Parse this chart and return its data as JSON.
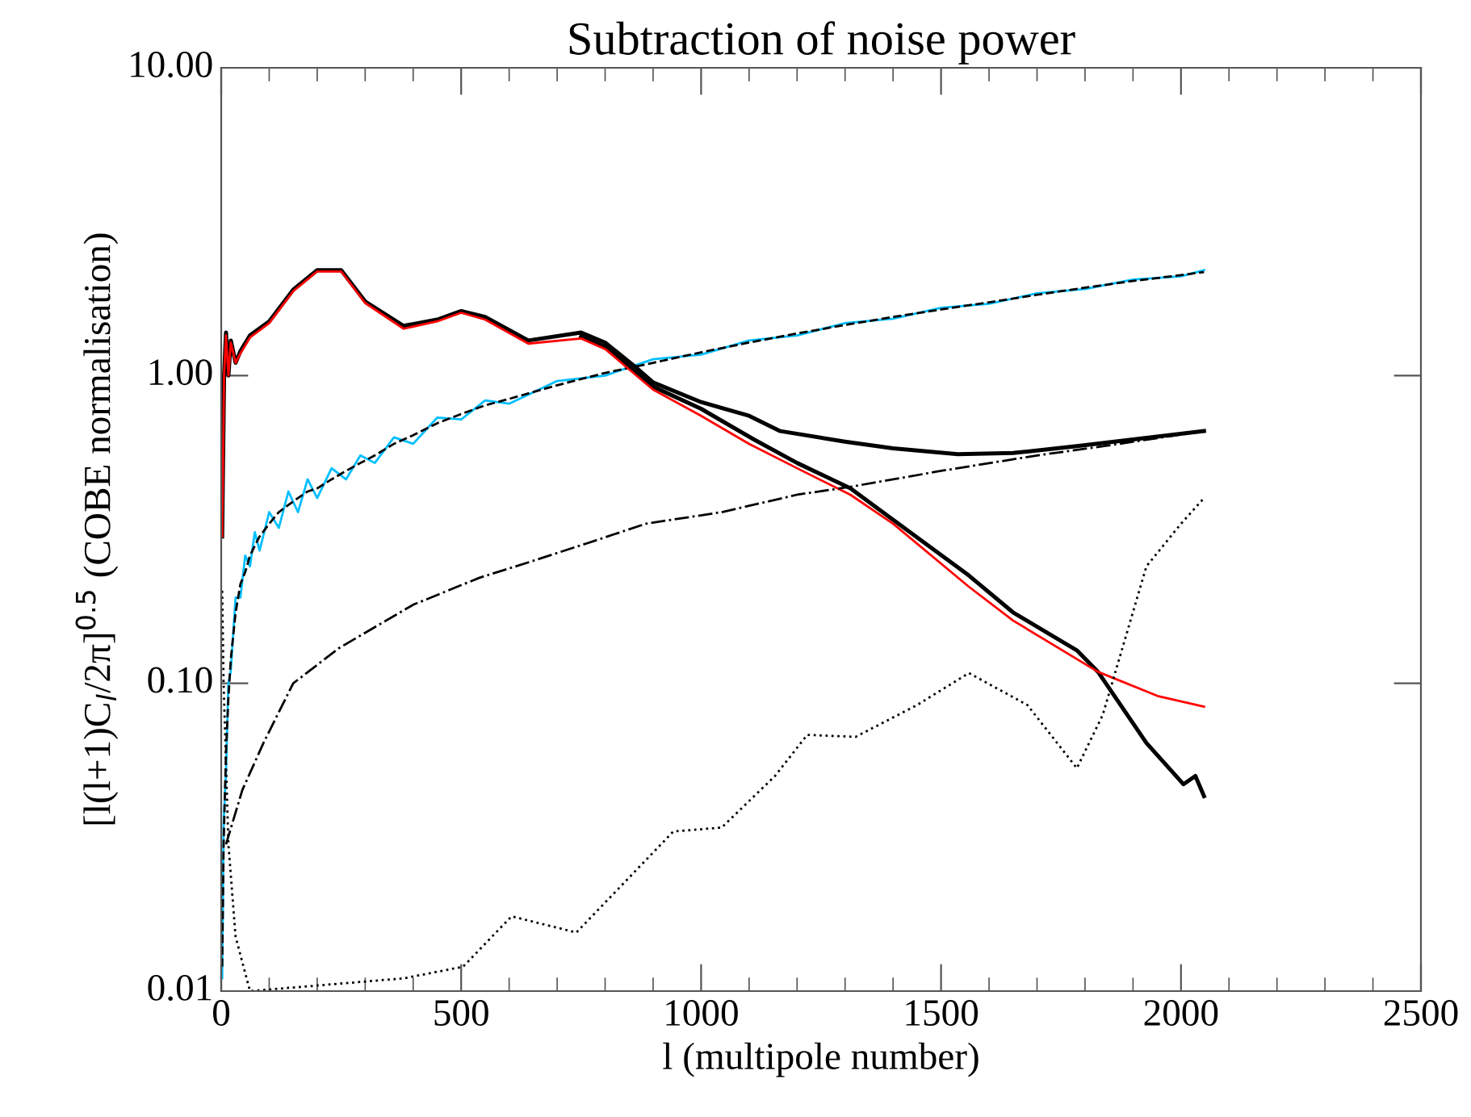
{
  "chart_data": {
    "type": "line",
    "title": "Subtraction of noise power",
    "xlabel": "l (multipole number)",
    "ylabel": "[l(l+1)C$_{l}$/2π]$^{0.5}$ (COBE normalisation)",
    "log": "y",
    "xlim": [
      0,
      2500
    ],
    "xticks": [
      0,
      500,
      1000,
      1500,
      2000,
      2500
    ],
    "ylim": [
      0.01,
      10
    ],
    "yticks": [
      {
        "value": 0.01,
        "label": "0.01"
      },
      {
        "value": 0.1,
        "label": "0.10"
      },
      {
        "value": 1,
        "label": "1.00"
      },
      {
        "value": 10,
        "label": "10.00"
      }
    ],
    "grid": false,
    "legend": false,
    "series": [
      {
        "color": "#00bfff",
        "line_style": "solid",
        "x": [
          2,
          5,
          10,
          15,
          20,
          30,
          40,
          50,
          60,
          70,
          80,
          100,
          120,
          140,
          160,
          180,
          200,
          230,
          260,
          290,
          320,
          360,
          400,
          450,
          500,
          550,
          600,
          700,
          800,
          900,
          1000,
          1100,
          1200,
          1300,
          1400,
          1500,
          1600,
          1700,
          1800,
          1900,
          2000,
          2048
        ],
        "values": [
          0.011,
          0.035,
          0.052,
          0.1,
          0.11,
          0.19,
          0.19,
          0.26,
          0.24,
          0.31,
          0.27,
          0.36,
          0.32,
          0.42,
          0.36,
          0.46,
          0.4,
          0.5,
          0.46,
          0.55,
          0.52,
          0.63,
          0.6,
          0.73,
          0.72,
          0.83,
          0.81,
          0.96,
          1.0,
          1.13,
          1.17,
          1.3,
          1.35,
          1.48,
          1.53,
          1.66,
          1.71,
          1.85,
          1.91,
          2.05,
          2.1,
          2.2
        ]
      },
      {
        "color": "#000000",
        "line_style": "dashed",
        "x": [
          2,
          5,
          10,
          15,
          20,
          30,
          40,
          50,
          60,
          70,
          80,
          100,
          120,
          140,
          160,
          180,
          200,
          230,
          260,
          290,
          320,
          360,
          400,
          450,
          500,
          550,
          600,
          700,
          800,
          900,
          1000,
          1100,
          1200,
          1300,
          1400,
          1500,
          1600,
          1700,
          1800,
          1900,
          2000,
          2048
        ],
        "values": [
          0.012,
          0.03,
          0.06,
          0.09,
          0.12,
          0.17,
          0.21,
          0.23,
          0.26,
          0.28,
          0.3,
          0.33,
          0.36,
          0.38,
          0.4,
          0.42,
          0.43,
          0.46,
          0.49,
          0.52,
          0.55,
          0.6,
          0.64,
          0.7,
          0.75,
          0.8,
          0.84,
          0.93,
          1.02,
          1.1,
          1.19,
          1.28,
          1.37,
          1.46,
          1.55,
          1.64,
          1.73,
          1.83,
          1.93,
          2.03,
          2.12,
          2.17
        ]
      },
      {
        "color": "#000000",
        "line_style": "solid",
        "x": [
          2,
          6,
          10,
          15,
          20,
          30,
          40,
          60,
          100,
          150,
          200,
          250,
          300,
          380,
          450,
          500,
          550,
          640,
          750,
          800,
          862,
          900,
          1000,
          1100,
          1165,
          1300,
          1400,
          1535,
          1650,
          1783,
          1900,
          2048
        ],
        "values": [
          0.3,
          1.0,
          1.38,
          1.0,
          1.3,
          1.1,
          1.2,
          1.35,
          1.5,
          1.9,
          2.2,
          2.2,
          1.74,
          1.45,
          1.52,
          1.62,
          1.55,
          1.3,
          1.38,
          1.28,
          1.07,
          0.95,
          0.82,
          0.74,
          0.66,
          0.61,
          0.58,
          0.555,
          0.56,
          0.59,
          0.62,
          0.66
        ]
      },
      {
        "color": "#000000",
        "line_style": "solid",
        "x": [
          750,
          800,
          862,
          900,
          1000,
          1110,
          1200,
          1311,
          1400,
          1558,
          1650,
          1783,
          1827,
          1928,
          2005,
          2030,
          2048
        ],
        "values": [
          1.34,
          1.24,
          1.03,
          0.92,
          0.78,
          0.62,
          0.52,
          0.43,
          0.34,
          0.224,
          0.17,
          0.128,
          0.109,
          0.064,
          0.047,
          0.05,
          0.043
        ]
      },
      {
        "color": "#ff0000",
        "line_style": "solid",
        "x": [
          2,
          6,
          10,
          15,
          20,
          30,
          40,
          60,
          100,
          150,
          200,
          250,
          300,
          380,
          450,
          500,
          550,
          640,
          750,
          800,
          862,
          900,
          1000,
          1100,
          1200,
          1311,
          1400,
          1558,
          1650,
          1827,
          1951,
          2048
        ],
        "values": [
          0.3,
          1.0,
          1.35,
          1.0,
          1.28,
          1.1,
          1.18,
          1.33,
          1.48,
          1.88,
          2.18,
          2.18,
          1.72,
          1.42,
          1.5,
          1.6,
          1.52,
          1.27,
          1.32,
          1.22,
          1.01,
          0.9,
          0.74,
          0.6,
          0.5,
          0.41,
          0.33,
          0.206,
          0.16,
          0.109,
          0.091,
          0.084
        ]
      },
      {
        "color": "#000000",
        "line_style": "dashdot",
        "x": [
          10,
          44,
          88,
          150,
          245,
          313,
          400,
          537,
          650,
          762,
          885,
          1043,
          1200,
          1311,
          1500,
          1700,
          1840,
          2048
        ],
        "values": [
          0.03,
          0.045,
          0.064,
          0.1,
          0.13,
          0.15,
          0.18,
          0.22,
          0.25,
          0.285,
          0.33,
          0.36,
          0.41,
          0.435,
          0.49,
          0.55,
          0.59,
          0.66
        ]
      },
      {
        "color": "#000000",
        "line_style": "dotted",
        "x": [
          2,
          5,
          15,
          30,
          60,
          380,
          504,
          605,
          740,
          942,
          1043,
          1154,
          1221,
          1322,
          1450,
          1558,
          1680,
          1783,
          1837,
          1928,
          2000,
          2048
        ],
        "values": [
          0.2,
          0.1,
          0.03,
          0.015,
          0.01,
          0.011,
          0.012,
          0.0175,
          0.0155,
          0.033,
          0.034,
          0.05,
          0.068,
          0.067,
          0.085,
          0.108,
          0.085,
          0.053,
          0.079,
          0.24,
          0.33,
          0.4
        ]
      }
    ]
  }
}
